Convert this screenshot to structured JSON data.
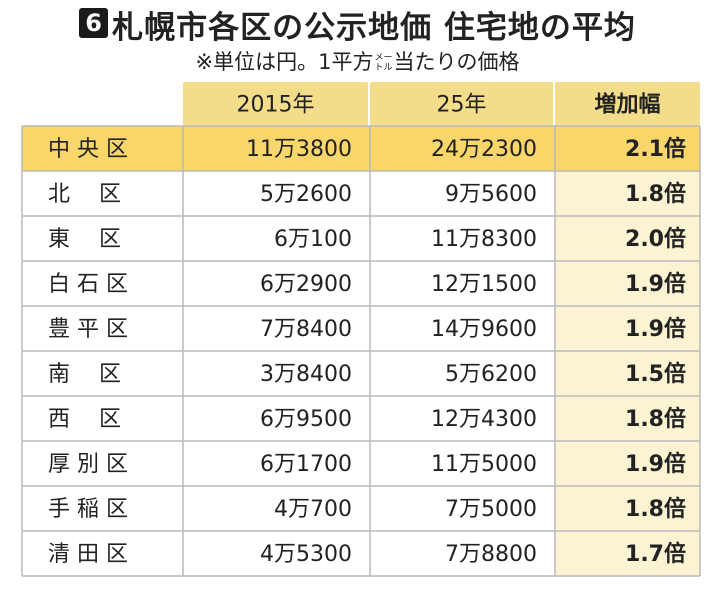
{
  "header": {
    "badge": "6",
    "title": "札幌市各区の公示地価 住宅地の平均",
    "subtitle_before": "※単位は円。1平方",
    "unit_top": "メー",
    "unit_bottom": "トル",
    "subtitle_after": "当たりの価格"
  },
  "colors": {
    "header_fill": "#f4dd8a",
    "highlight_fill": "#f8d66a",
    "body_fill": "#ffffff",
    "mult_fill": "#fbf3d2",
    "rule": "#b9b9b9"
  },
  "chart_data": {
    "type": "table",
    "title": "札幌市各区の公示地価 住宅地の平均",
    "subtitle": "※単位は円。1平方メートル当たりの価格",
    "columns": [
      "",
      "2015年",
      "25年",
      "増加幅"
    ],
    "highlight_row": 0,
    "rows": [
      {
        "ward": "中 央 区",
        "y2015": "11万3800",
        "y2025": "24万2300",
        "increase": "2.1倍"
      },
      {
        "ward": "北　 区",
        "y2015": "5万2600",
        "y2025": "9万5600",
        "increase": "1.8倍"
      },
      {
        "ward": "東　 区",
        "y2015": "6万100",
        "y2025": "11万8300",
        "increase": "2.0倍"
      },
      {
        "ward": "白 石 区",
        "y2015": "6万2900",
        "y2025": "12万1500",
        "increase": "1.9倍"
      },
      {
        "ward": "豊 平 区",
        "y2015": "7万8400",
        "y2025": "14万9600",
        "increase": "1.9倍"
      },
      {
        "ward": "南　 区",
        "y2015": "3万8400",
        "y2025": "5万6200",
        "increase": "1.5倍"
      },
      {
        "ward": "西　 区",
        "y2015": "6万9500",
        "y2025": "12万4300",
        "increase": "1.8倍"
      },
      {
        "ward": "厚 別 区",
        "y2015": "6万1700",
        "y2025": "11万5000",
        "increase": "1.9倍"
      },
      {
        "ward": "手 稲 区",
        "y2015": "4万700",
        "y2025": "7万5000",
        "increase": "1.8倍"
      },
      {
        "ward": "清 田 区",
        "y2015": "4万5300",
        "y2025": "7万8800",
        "increase": "1.7倍"
      }
    ]
  }
}
